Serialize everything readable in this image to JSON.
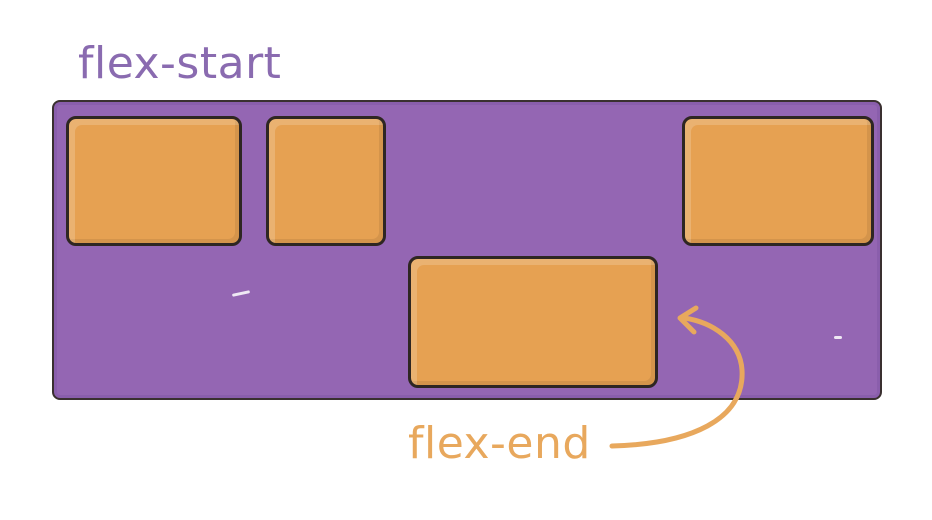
{
  "labels": {
    "start": "flex-start",
    "end": "flex-end"
  },
  "colors": {
    "container": "#9466b3",
    "item": "#e6a152",
    "outline": "#2e2622",
    "start_label": "#8a6bb0",
    "end_label": "#e8a85d"
  }
}
